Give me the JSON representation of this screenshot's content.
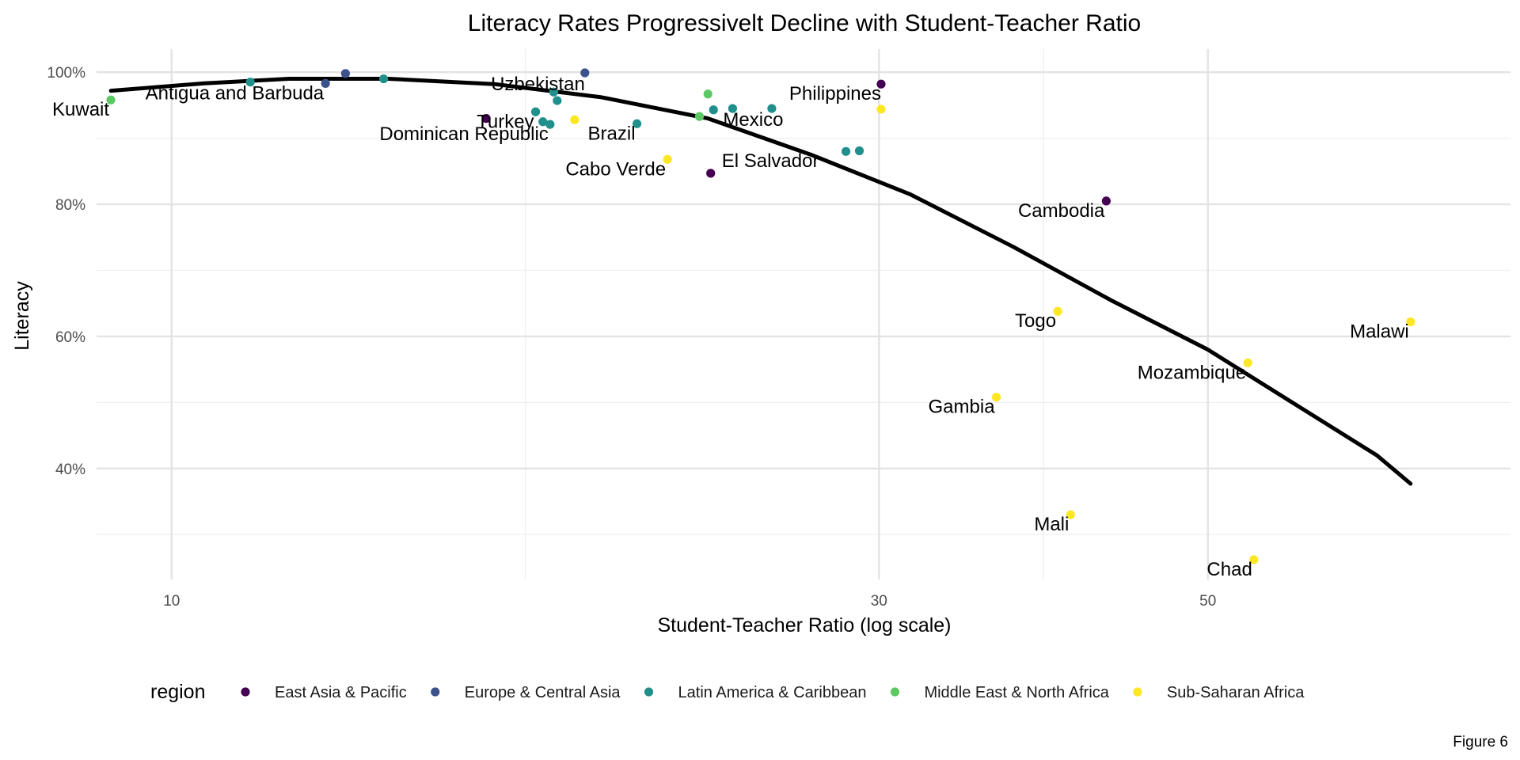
{
  "chart_data": {
    "type": "scatter",
    "title": "Literacy Rates Progressivelt Decline with Student-Teacher Ratio",
    "xlabel": "Student-Teacher Ratio (log scale)",
    "ylabel": "Literacy",
    "x_scale": "log",
    "xlim": [
      8.9,
      80
    ],
    "ylim": [
      0.232,
      1.035
    ],
    "x_ticks": [
      {
        "value": 10,
        "label": "10"
      },
      {
        "value": 30,
        "label": "30"
      },
      {
        "value": 50,
        "label": "50"
      }
    ],
    "x_minor_ticks": [
      17.32,
      38.73
    ],
    "y_ticks": [
      {
        "value": 0.4,
        "label": "40%"
      },
      {
        "value": 0.6,
        "label": "60%"
      },
      {
        "value": 0.8,
        "label": "80%"
      },
      {
        "value": 1.0,
        "label": "100%"
      }
    ],
    "y_minor_ticks": [
      0.3,
      0.5,
      0.7,
      0.9
    ],
    "grid": true,
    "legend": {
      "title": "region",
      "position": "bottom",
      "entries": [
        {
          "name": "East Asia & Pacific",
          "color": "#440154"
        },
        {
          "name": "Europe & Central Asia",
          "color": "#3b528b"
        },
        {
          "name": "Latin America & Caribbean",
          "color": "#21908c"
        },
        {
          "name": "Middle East & North Africa",
          "color": "#5dc863"
        },
        {
          "name": "Sub-Saharan Africa",
          "color": "#fde725"
        }
      ]
    },
    "trend_line": {
      "type": "quadratic fit",
      "points": [
        {
          "x": 9.1,
          "y": 0.972
        },
        {
          "x": 10.5,
          "y": 0.983
        },
        {
          "x": 12.0,
          "y": 0.99
        },
        {
          "x": 14.0,
          "y": 0.99
        },
        {
          "x": 16.5,
          "y": 0.982
        },
        {
          "x": 19.5,
          "y": 0.962
        },
        {
          "x": 23.0,
          "y": 0.93
        },
        {
          "x": 27.0,
          "y": 0.875
        },
        {
          "x": 31.5,
          "y": 0.815
        },
        {
          "x": 37.0,
          "y": 0.735
        },
        {
          "x": 43.0,
          "y": 0.655
        },
        {
          "x": 50.0,
          "y": 0.58
        },
        {
          "x": 57.0,
          "y": 0.5
        },
        {
          "x": 65.0,
          "y": 0.42
        },
        {
          "x": 68.5,
          "y": 0.377
        }
      ]
    },
    "points": [
      {
        "label": "Kuwait",
        "region": "Middle East & North Africa",
        "x": 9.1,
        "y": 0.958
      },
      {
        "label": "",
        "region": "Latin America & Caribbean",
        "x": 11.3,
        "y": 0.985
      },
      {
        "label": "Antigua and Barbuda",
        "region": "Europe & Central Asia",
        "x": 12.7,
        "y": 0.983
      },
      {
        "label": "",
        "region": "Europe & Central Asia",
        "x": 13.1,
        "y": 0.998
      },
      {
        "label": "",
        "region": "Latin America & Caribbean",
        "x": 13.9,
        "y": 0.99
      },
      {
        "label": "",
        "region": "East Asia & Pacific",
        "x": 16.3,
        "y": 0.93
      },
      {
        "label": "Turkey",
        "region": "Latin America & Caribbean",
        "x": 17.6,
        "y": 0.94
      },
      {
        "label": "",
        "region": "Latin America & Caribbean",
        "x": 17.8,
        "y": 0.925
      },
      {
        "label": "Dominican Republic",
        "region": "Latin America & Caribbean",
        "x": 18.0,
        "y": 0.921
      },
      {
        "label": "",
        "region": "Latin America & Caribbean",
        "x": 18.1,
        "y": 0.97
      },
      {
        "label": "",
        "region": "Latin America & Caribbean",
        "x": 18.2,
        "y": 0.957
      },
      {
        "label": "Uzbekistan",
        "region": "Europe & Central Asia",
        "x": 19.0,
        "y": 0.999
      },
      {
        "label": "",
        "region": "Sub-Saharan Africa",
        "x": 18.7,
        "y": 0.928
      },
      {
        "label": "Brazil",
        "region": "Latin America & Caribbean",
        "x": 20.6,
        "y": 0.922
      },
      {
        "label": "Cabo Verde",
        "region": "Sub-Saharan Africa",
        "x": 21.6,
        "y": 0.868
      },
      {
        "label": "",
        "region": "Middle East & North Africa",
        "x": 22.7,
        "y": 0.933
      },
      {
        "label": "",
        "region": "Middle East & North Africa",
        "x": 23.0,
        "y": 0.967
      },
      {
        "label": "El Salvador",
        "region": "East Asia & Pacific",
        "x": 23.1,
        "y": 0.847
      },
      {
        "label": "",
        "region": "Latin America & Caribbean",
        "x": 23.2,
        "y": 0.943
      },
      {
        "label": "Mexico",
        "region": "Latin America & Caribbean",
        "x": 23.9,
        "y": 0.945
      },
      {
        "label": "",
        "region": "Latin America & Caribbean",
        "x": 25.4,
        "y": 0.945
      },
      {
        "label": "",
        "region": "Latin America & Caribbean",
        "x": 28.5,
        "y": 0.88
      },
      {
        "label": "",
        "region": "Latin America & Caribbean",
        "x": 29.1,
        "y": 0.881
      },
      {
        "label": "Philippines",
        "region": "East Asia & Pacific",
        "x": 30.1,
        "y": 0.982
      },
      {
        "label": "",
        "region": "Sub-Saharan Africa",
        "x": 30.1,
        "y": 0.944
      },
      {
        "label": "Gambia",
        "region": "Sub-Saharan Africa",
        "x": 36.0,
        "y": 0.508
      },
      {
        "label": "Togo",
        "region": "Sub-Saharan Africa",
        "x": 39.6,
        "y": 0.638
      },
      {
        "label": "Mali",
        "region": "Sub-Saharan Africa",
        "x": 40.4,
        "y": 0.33
      },
      {
        "label": "Cambodia",
        "region": "East Asia & Pacific",
        "x": 42.7,
        "y": 0.805
      },
      {
        "label": "Mozambique",
        "region": "Sub-Saharan Africa",
        "x": 53.2,
        "y": 0.56
      },
      {
        "label": "Chad",
        "region": "Sub-Saharan Africa",
        "x": 53.7,
        "y": 0.262
      },
      {
        "label": "Malawi",
        "region": "Sub-Saharan Africa",
        "x": 68.5,
        "y": 0.622
      }
    ],
    "caption": "Figure 6"
  }
}
